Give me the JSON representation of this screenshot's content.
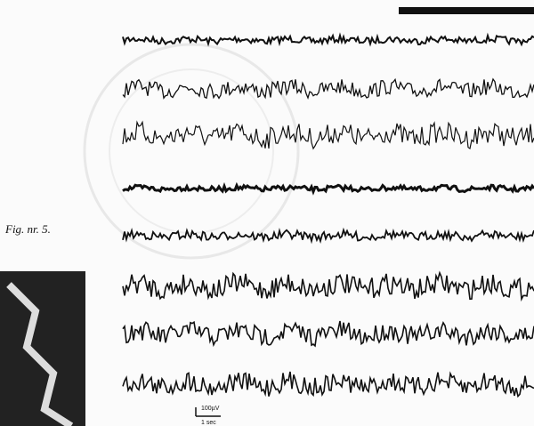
{
  "figure": {
    "caption": "Fig. nr. 5.",
    "scale_amplitude": "100µV",
    "scale_time": "1 sec"
  }
}
